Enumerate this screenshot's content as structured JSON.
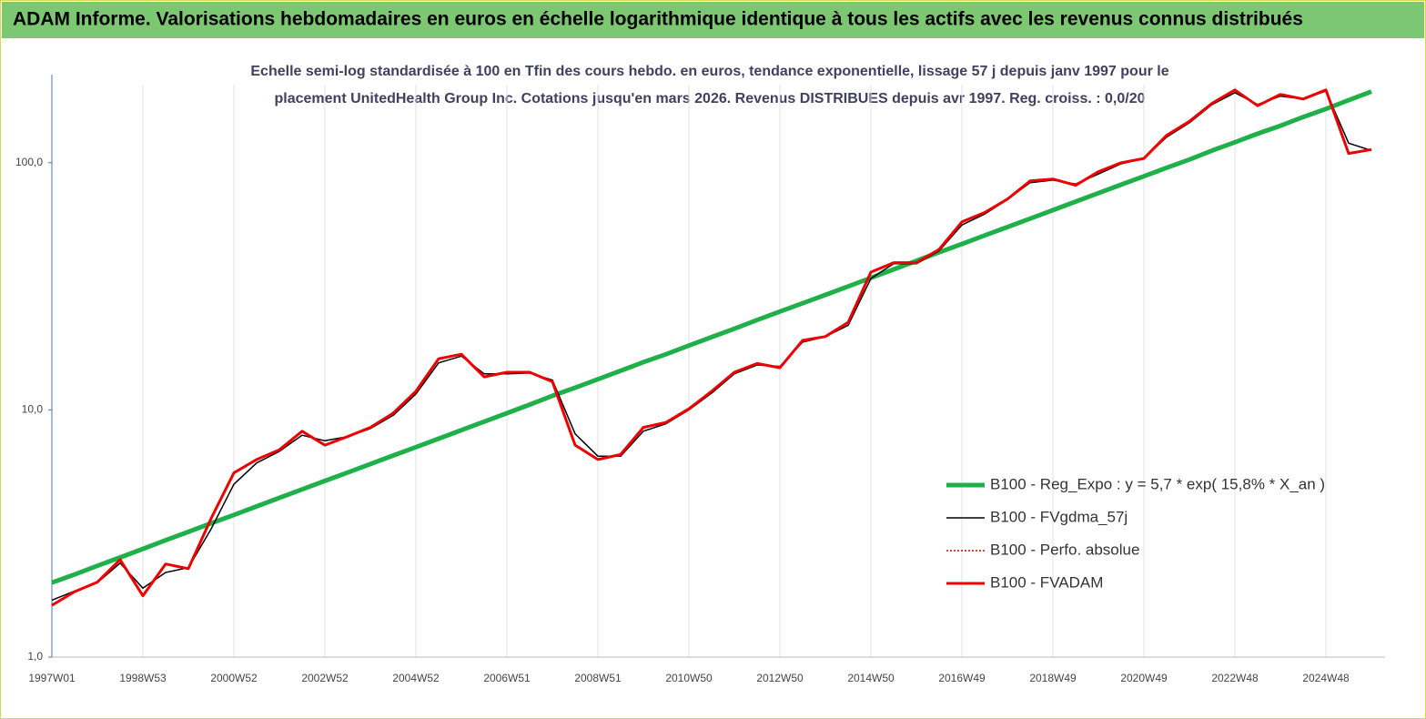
{
  "chart_data": {
    "type": "line",
    "title": "ADAM Informe. Valorisations hebdomadaires en euros en échelle logarithmique identique à tous les actifs avec les revenus connus distribués",
    "subtitle": [
      "Echelle semi-log standardisée à 100 en Tfin des cours hebdo. en euros, tendance exponentielle, lissage 57 j depuis janv 1997 pour le",
      "placement UnitedHealth Group Inc. Cotations jusqu'en mars 2026. Revenus DISTRIBUES depuis avr 1997. Reg. croiss. : 0,0/20"
    ],
    "categories": [
      "1997W01",
      null,
      null,
      null,
      "1998W53",
      null,
      null,
      null,
      "2000W52",
      null,
      null,
      null,
      "2002W52",
      null,
      null,
      null,
      "2004W52",
      null,
      null,
      null,
      "2006W51",
      null,
      null,
      null,
      "2008W51",
      null,
      null,
      null,
      "2010W50",
      null,
      null,
      null,
      "2012W50",
      null,
      null,
      null,
      "2014W50",
      null,
      null,
      null,
      "2016W49",
      null,
      null,
      null,
      "2018W49",
      null,
      null,
      null,
      "2020W49",
      null,
      null,
      null,
      "2022W48",
      null,
      null,
      null,
      "2024W48",
      null,
      null
    ],
    "log_scale": true,
    "ylim": [
      1,
      200
    ],
    "yticks": [
      {
        "value": 1,
        "label": "1,0"
      },
      {
        "value": 10,
        "label": "10,0"
      },
      {
        "value": 100,
        "label": "100,0"
      }
    ],
    "grid": "x",
    "legend_position": "right",
    "series": [
      {
        "name": "B100 - Reg_Expo : y = 5,7 * exp( 15,8% *  X_an )",
        "color": "#1fb04a",
        "style": "solid",
        "width": 5,
        "values": [
          2.0,
          2.16,
          2.34,
          2.53,
          2.74,
          2.97,
          3.21,
          3.48,
          3.76,
          4.07,
          4.41,
          4.77,
          5.16,
          5.58,
          6.04,
          6.54,
          7.07,
          7.65,
          8.28,
          8.96,
          9.7,
          10.5,
          11.4,
          12.3,
          13.3,
          14.4,
          15.6,
          16.8,
          18.2,
          19.7,
          21.3,
          23.1,
          25.0,
          27.0,
          29.2,
          31.6,
          34.2,
          37.0,
          40.1,
          43.4,
          46.9,
          50.8,
          54.9,
          59.4,
          64.3,
          69.6,
          75.3,
          81.5,
          88.1,
          95.4,
          103,
          112,
          121,
          131,
          141,
          153,
          165,
          179,
          194
        ]
      },
      {
        "name": "B100 - FVgdma_57j",
        "color": "#000000",
        "style": "solid",
        "width": 1.5,
        "values": [
          1.7,
          1.85,
          2.0,
          2.4,
          1.9,
          2.2,
          2.3,
          3.3,
          5.0,
          6.1,
          6.8,
          7.9,
          7.5,
          7.8,
          8.4,
          9.5,
          11.6,
          15.5,
          16.5,
          14.0,
          14.0,
          14.1,
          13.2,
          8.0,
          6.5,
          6.5,
          8.2,
          8.8,
          10.0,
          11.7,
          14.0,
          15.2,
          15.0,
          18.8,
          19.8,
          22.0,
          34,
          39,
          39,
          44,
          56,
          62,
          71,
          83,
          85,
          82,
          90,
          99,
          104,
          127,
          145,
          172,
          192,
          172,
          186,
          181,
          195,
          120,
          112
        ]
      },
      {
        "name": "B100 - Perfo. absolue",
        "color": "#e00000",
        "style": "dotted",
        "width": 1.5,
        "values": [
          1.62,
          1.84,
          2.01,
          2.48,
          1.77,
          2.38,
          2.28,
          3.64,
          5.56,
          6.3,
          6.9,
          8.2,
          7.2,
          7.8,
          8.5,
          9.7,
          11.9,
          16.1,
          16.8,
          13.6,
          14.2,
          14.2,
          13.0,
          7.2,
          6.3,
          6.6,
          8.5,
          8.9,
          10.1,
          11.9,
          14.2,
          15.4,
          14.8,
          19.1,
          19.8,
          22.6,
          36.1,
          39.4,
          39.4,
          44.6,
          57.6,
          62.9,
          71.2,
          84.4,
          85.9,
          81,
          91.9,
          100,
          104,
          129,
          147,
          174,
          197,
          170,
          189,
          181,
          197,
          109,
          113
        ]
      },
      {
        "name": "B100 - FVADAM",
        "color": "#ee0000",
        "style": "solid",
        "width": 3,
        "values": [
          1.62,
          1.84,
          2.01,
          2.48,
          1.77,
          2.38,
          2.28,
          3.64,
          5.56,
          6.3,
          6.9,
          8.2,
          7.2,
          7.8,
          8.5,
          9.7,
          11.9,
          16.1,
          16.8,
          13.6,
          14.2,
          14.2,
          13.0,
          7.2,
          6.3,
          6.6,
          8.5,
          8.9,
          10.1,
          11.9,
          14.2,
          15.4,
          14.8,
          19.1,
          19.8,
          22.6,
          36.1,
          39.4,
          39.4,
          44.6,
          57.6,
          62.9,
          71.2,
          84.4,
          85.9,
          81,
          91.9,
          100,
          104,
          129,
          147,
          174,
          197,
          170,
          189,
          181,
          197,
          109,
          113
        ]
      }
    ]
  }
}
